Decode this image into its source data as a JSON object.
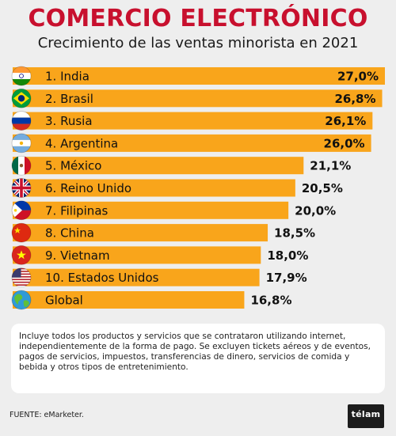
{
  "header": {
    "title": "COMERCIO ELECTRÓNICO",
    "subtitle": "Crecimiento de las ventas minorista en 2021"
  },
  "chart_data": {
    "type": "bar",
    "orientation": "horizontal",
    "title": "COMERCIO ELECTRÓNICO",
    "subtitle": "Crecimiento de las ventas minorista en 2021",
    "xlabel": "",
    "ylabel": "",
    "unit": "%",
    "grid": false,
    "legend": "none",
    "bar_color": "#f9a51b",
    "xlim": [
      0,
      27.0
    ],
    "categories": [
      "1. India",
      "2. Brasil",
      "3. Rusia",
      "4. Argentina",
      "5. México",
      "6. Reino Unido",
      "7. Filipinas",
      "8. China",
      "9. Vietnam",
      "10. Estados Unidos",
      "Global"
    ],
    "values": [
      27.0,
      26.8,
      26.1,
      26.0,
      21.1,
      20.5,
      20.0,
      18.5,
      18.0,
      17.9,
      16.8
    ],
    "value_labels": [
      "27,0%",
      "26,8%",
      "26,1%",
      "26,0%",
      "21,1%",
      "20,5%",
      "20,0%",
      "18,5%",
      "18,0%",
      "17,9%",
      "16,8%"
    ],
    "flags": [
      "india-flag-icon",
      "brazil-flag-icon",
      "russia-flag-icon",
      "argentina-flag-icon",
      "mexico-flag-icon",
      "uk-flag-icon",
      "philippines-flag-icon",
      "china-flag-icon",
      "vietnam-flag-icon",
      "usa-flag-icon",
      "globe-icon"
    ]
  },
  "note": {
    "text": "Incluye todos los productos y servicios que se contrataron utilizando internet, independientemente de la forma de pago. Se excluyen tickets aéreos y de eventos, pagos de servicios, impuestos, transferencias de dinero, servicios de comida y bebida y otros tipos de entretenimiento."
  },
  "footer": {
    "source": "FUENTE: eMarketer.",
    "logo": "télam"
  },
  "colors": {
    "title": "#c8102e",
    "bar": "#f9a51b",
    "background": "#eeeeee"
  }
}
